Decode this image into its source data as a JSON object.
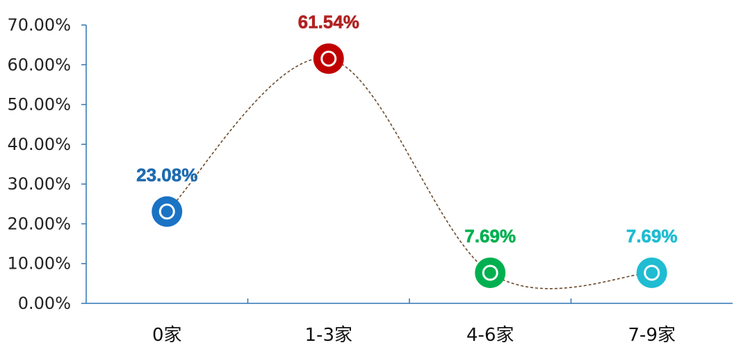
{
  "chart_data": {
    "type": "line",
    "categories": [
      "0家",
      "1-3家",
      "4-6家",
      "7-9家"
    ],
    "values": [
      23.08,
      61.54,
      7.69,
      7.69
    ],
    "data_labels": [
      "23.08%",
      "61.54%",
      "7.69%",
      "7.69%"
    ],
    "point_colors": [
      "#1a73c4",
      "#c00000",
      "#00b050",
      "#1fbcd2"
    ],
    "label_colors": [
      "#1f6bb0",
      "#b22222",
      "#00b050",
      "#1fbcd2"
    ],
    "line_color": "#6b4a2b",
    "line_style": "dashed-smooth",
    "yticks": [
      "0.00%",
      "10.00%",
      "20.00%",
      "30.00%",
      "40.00%",
      "50.00%",
      "60.00%",
      "70.00%"
    ],
    "ylim": [
      0,
      70
    ],
    "ytick_step": 10,
    "axis_color": "#2e75b6",
    "grid": false,
    "title": "",
    "xlabel": "",
    "ylabel": ""
  }
}
